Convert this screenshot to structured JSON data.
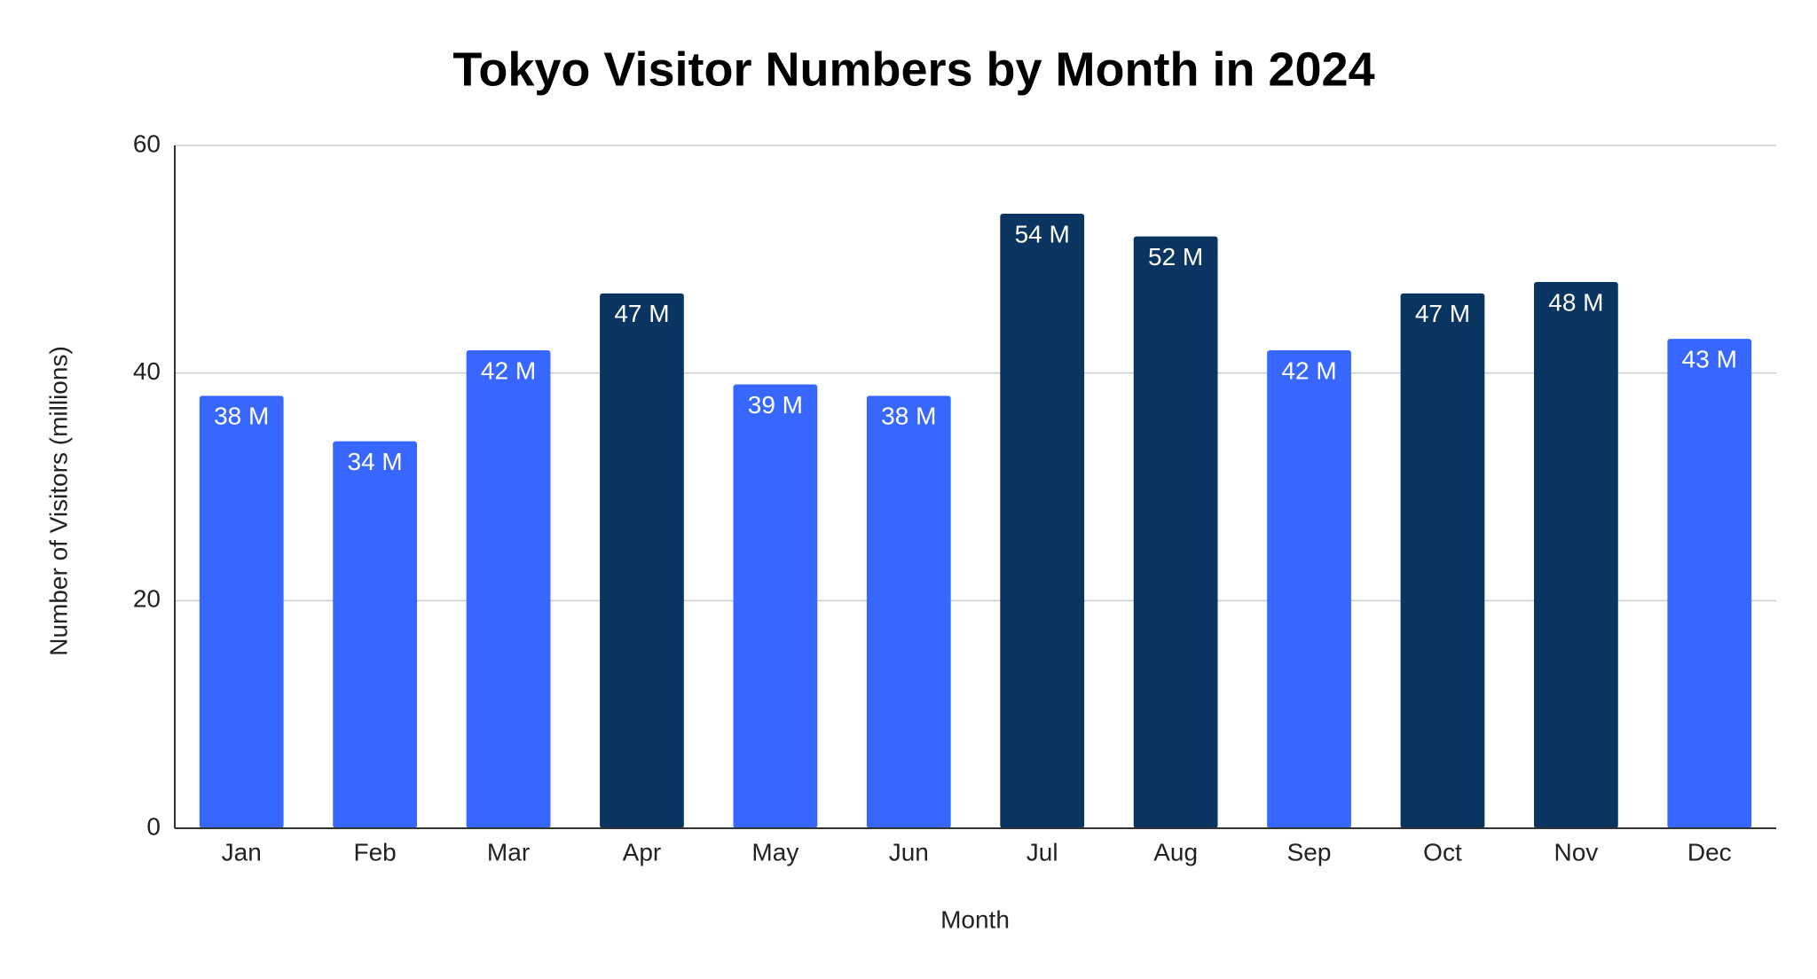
{
  "chart_data": {
    "type": "bar",
    "title": "Tokyo Visitor Numbers by Month in 2024",
    "x_label": "Month",
    "y_label": "Number of Visitors (millions)",
    "categories": [
      "Jan",
      "Feb",
      "Mar",
      "Apr",
      "May",
      "Jun",
      "Jul",
      "Aug",
      "Sep",
      "Oct",
      "Nov",
      "Dec"
    ],
    "values": [
      38,
      34,
      42,
      47,
      39,
      38,
      54,
      52,
      42,
      47,
      48,
      43
    ],
    "value_labels": [
      "38 M",
      "34 M",
      "42 M",
      "47 M",
      "39 M",
      "38 M",
      "54 M",
      "52 M",
      "42 M",
      "47 M",
      "48 M",
      "43 M"
    ],
    "colors": [
      "#3767ff",
      "#3767ff",
      "#3767ff",
      "#0b3561",
      "#3767ff",
      "#3767ff",
      "#0b3561",
      "#0b3561",
      "#3767ff",
      "#0b3561",
      "#0b3561",
      "#3767ff"
    ],
    "ylim": [
      0,
      60
    ],
    "yticks": [
      0,
      20,
      40,
      60
    ],
    "grid": true
  }
}
